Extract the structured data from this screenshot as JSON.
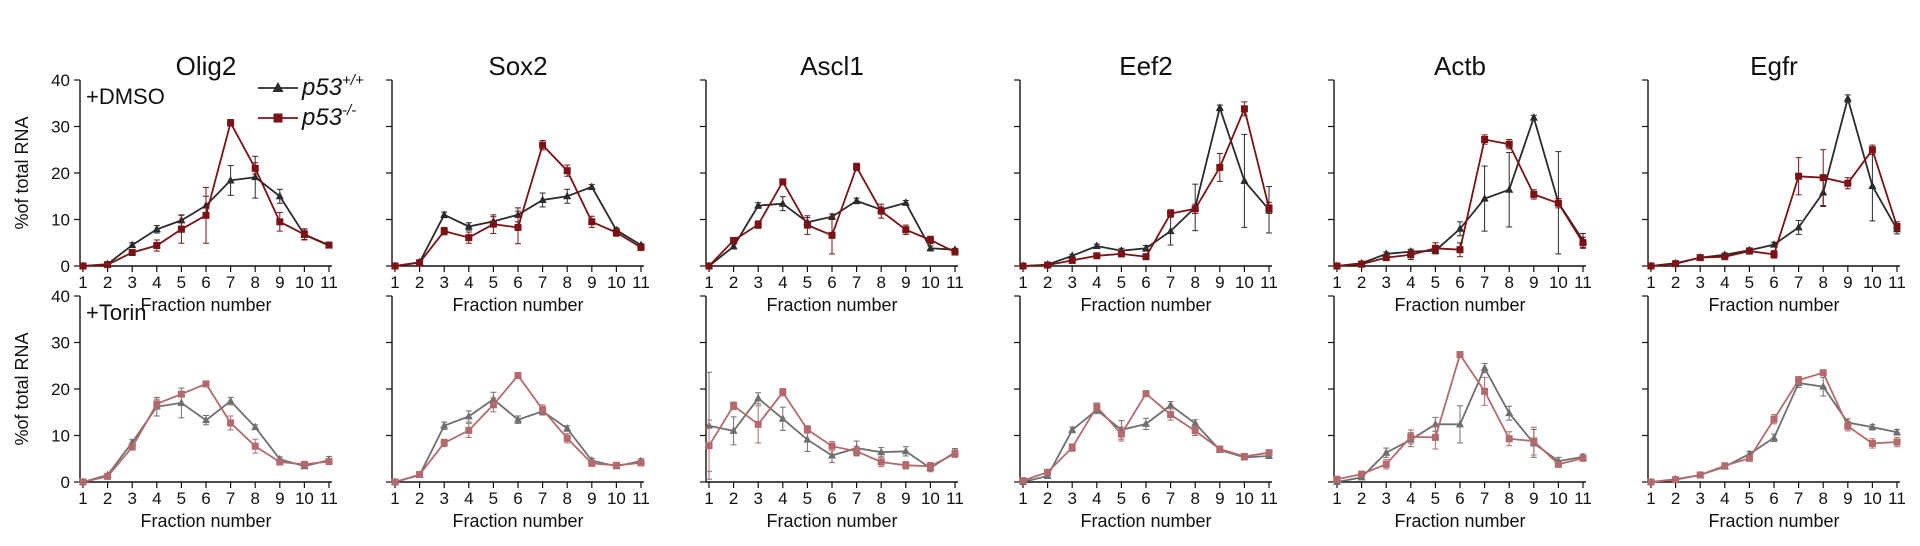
{
  "figure": {
    "legend": [
      {
        "label_main": "p53",
        "label_sup": "+/+",
        "color": "#2b2b2b",
        "marker": "triangle"
      },
      {
        "label_main": "p53",
        "label_sup": "-/-",
        "color": "#7a1216",
        "marker": "square"
      }
    ],
    "rows": [
      {
        "condition": "+DMSO",
        "ylabel": "%of total RNA",
        "faded": false
      },
      {
        "condition": "+Torin",
        "ylabel": "%of total RNA",
        "faded": true
      }
    ],
    "xlabel": "Fraction number",
    "xticks": [
      1,
      2,
      3,
      4,
      5,
      6,
      7,
      8,
      9,
      10,
      11
    ],
    "yticks": [
      0,
      10,
      20,
      30,
      40
    ]
  },
  "chart_data": [
    {
      "type": "line",
      "title": "Olig2",
      "row": "+DMSO",
      "xlabel": "Fraction number",
      "ylabel": "%of total RNA",
      "ylim": [
        0,
        40
      ],
      "x": [
        1,
        2,
        3,
        4,
        5,
        6,
        7,
        8,
        9,
        10,
        11
      ],
      "series": [
        {
          "name": "p53+/+",
          "values": [
            0,
            0.4,
            4.5,
            7.9,
            9.8,
            13,
            18.4,
            19.1,
            15,
            6.7,
            4.4
          ],
          "err": [
            0,
            0.3,
            0.5,
            0.8,
            1.2,
            2,
            3.2,
            4.5,
            1.5,
            1,
            0.5
          ]
        },
        {
          "name": "p53-/-",
          "values": [
            0,
            0.3,
            2.9,
            4.4,
            7.9,
            10.9,
            30.8,
            21,
            9.5,
            6.8,
            4.5
          ],
          "err": [
            0,
            0.2,
            0.6,
            1.2,
            3,
            6,
            0.7,
            1.2,
            2,
            1.2,
            0.5
          ]
        }
      ]
    },
    {
      "type": "line",
      "title": "Sox2",
      "row": "+DMSO",
      "xlabel": "Fraction number",
      "ylabel": "%of total RNA",
      "ylim": [
        0,
        40
      ],
      "x": [
        1,
        2,
        3,
        4,
        5,
        6,
        7,
        8,
        9,
        10,
        11
      ],
      "series": [
        {
          "name": "p53+/+",
          "values": [
            0,
            0.8,
            11,
            8.5,
            9.6,
            11,
            14.2,
            15,
            17,
            7.7,
            4.5
          ],
          "err": [
            0,
            0.4,
            0.6,
            0.8,
            1,
            1.5,
            1.5,
            1.5,
            0.5,
            0.5,
            0.3
          ]
        },
        {
          "name": "p53-/-",
          "values": [
            0,
            0.7,
            7.5,
            6.1,
            9,
            8.3,
            26,
            20.5,
            9.5,
            7.2,
            4
          ],
          "err": [
            0,
            0.3,
            0.8,
            1.2,
            2,
            3.5,
            1,
            1.2,
            1.2,
            0.8,
            0.5
          ]
        }
      ]
    },
    {
      "type": "line",
      "title": "Ascl1",
      "row": "+DMSO",
      "xlabel": "Fraction number",
      "ylabel": "%of total RNA",
      "ylim": [
        0,
        40
      ],
      "x": [
        1,
        2,
        3,
        4,
        5,
        6,
        7,
        8,
        9,
        10,
        11
      ],
      "series": [
        {
          "name": "p53+/+",
          "values": [
            0,
            4.2,
            13,
            13.4,
            9.4,
            10.6,
            14,
            12.1,
            13.6,
            3.8,
            3.5
          ],
          "err": [
            0,
            0.5,
            0.6,
            1.5,
            1,
            0.6,
            0.6,
            0.6,
            0.5,
            0.5,
            0.3
          ]
        },
        {
          "name": "p53-/-",
          "values": [
            0,
            5.5,
            8.9,
            18.1,
            8.8,
            6.6,
            21.3,
            11.8,
            7.8,
            5.6,
            3
          ],
          "err": [
            0,
            0.3,
            0.8,
            0.6,
            2,
            4,
            0.8,
            1.5,
            1,
            0.8,
            0.5
          ]
        }
      ]
    },
    {
      "type": "line",
      "title": "Eef2",
      "row": "+DMSO",
      "xlabel": "Fraction number",
      "ylabel": "%of total RNA",
      "ylim": [
        0,
        40
      ],
      "x": [
        1,
        2,
        3,
        4,
        5,
        6,
        7,
        8,
        9,
        10,
        11
      ],
      "series": [
        {
          "name": "p53+/+",
          "values": [
            0,
            0.3,
            2.2,
            4.3,
            3.3,
            3.8,
            7.5,
            12.6,
            34,
            18.3,
            12.1
          ],
          "err": [
            0,
            0.2,
            0.3,
            0.4,
            0.5,
            0.6,
            3,
            5,
            0.6,
            10,
            5
          ]
        },
        {
          "name": "p53-/-",
          "values": [
            0,
            0.2,
            1.2,
            2.2,
            2.6,
            2,
            11.3,
            12.3,
            21.2,
            33.8,
            12.5
          ],
          "err": [
            0,
            0.1,
            0.3,
            0.4,
            0.5,
            0.5,
            0.8,
            1,
            3,
            1.5,
            1.2
          ]
        }
      ]
    },
    {
      "type": "line",
      "title": "Actb",
      "row": "+DMSO",
      "xlabel": "Fraction number",
      "ylabel": "%of total RNA",
      "ylim": [
        0,
        40
      ],
      "x": [
        1,
        2,
        3,
        4,
        5,
        6,
        7,
        8,
        9,
        10,
        11
      ],
      "series": [
        {
          "name": "p53+/+",
          "values": [
            0,
            0.6,
            2.6,
            3.1,
            3.3,
            8,
            14.5,
            16.4,
            31.9,
            13.6,
            5.5
          ],
          "err": [
            0,
            0.3,
            0.4,
            0.5,
            0.6,
            1.5,
            7,
            8,
            0.5,
            11,
            1.5
          ]
        },
        {
          "name": "p53-/-",
          "values": [
            0,
            0.4,
            1.8,
            2.4,
            3.8,
            3.5,
            27.2,
            26.2,
            15.4,
            13.5,
            5
          ],
          "err": [
            0,
            0.2,
            0.4,
            1,
            1.2,
            1.5,
            1,
            1,
            1,
            1,
            1.2
          ]
        }
      ]
    },
    {
      "type": "line",
      "title": "Egfr",
      "row": "+DMSO",
      "xlabel": "Fraction number",
      "ylabel": "%of total RNA",
      "ylim": [
        0,
        40
      ],
      "x": [
        1,
        2,
        3,
        4,
        5,
        6,
        7,
        8,
        9,
        10,
        11
      ],
      "series": [
        {
          "name": "p53+/+",
          "values": [
            0,
            0.6,
            1.8,
            2.4,
            3.4,
            4.6,
            8.3,
            15.8,
            36,
            17.2,
            7.9
          ],
          "err": [
            0,
            0.3,
            0.3,
            0.4,
            0.5,
            0.5,
            1.5,
            3,
            0.8,
            7.5,
            1
          ]
        },
        {
          "name": "p53-/-",
          "values": [
            0,
            0.5,
            1.8,
            2,
            3.2,
            2.5,
            19.3,
            19,
            17.8,
            25,
            8.5
          ],
          "err": [
            0,
            0.2,
            0.3,
            0.4,
            0.5,
            0.8,
            4,
            6,
            1.2,
            1,
            1
          ]
        }
      ]
    },
    {
      "type": "line",
      "title": "Olig2",
      "row": "+Torin",
      "xlabel": "Fraction number",
      "ylabel": "%of total RNA",
      "ylim": [
        0,
        40
      ],
      "x": [
        1,
        2,
        3,
        4,
        5,
        6,
        7,
        8,
        9,
        10,
        11
      ],
      "series": [
        {
          "name": "p53+/+",
          "values": [
            0,
            1.5,
            8.5,
            16.2,
            17,
            13.3,
            17.4,
            11.8,
            4.9,
            3.4,
            4.7
          ],
          "err": [
            0,
            0.3,
            0.6,
            2,
            3.2,
            1,
            0.8,
            0.5,
            0.5,
            0.5,
            0.8
          ]
        },
        {
          "name": "p53-/-",
          "values": [
            0,
            1.2,
            7.5,
            16.8,
            18.9,
            21.1,
            12.7,
            7.7,
            4.3,
            3.8,
            4.4
          ],
          "err": [
            0,
            0.3,
            0.6,
            1,
            0.5,
            0.6,
            1.5,
            1.5,
            0.5,
            0.5,
            0.5
          ]
        }
      ]
    },
    {
      "type": "line",
      "title": "Sox2",
      "row": "+Torin",
      "xlabel": "Fraction number",
      "ylabel": "%of total RNA",
      "ylim": [
        0,
        40
      ],
      "x": [
        1,
        2,
        3,
        4,
        5,
        6,
        7,
        8,
        9,
        10,
        11
      ],
      "series": [
        {
          "name": "p53+/+",
          "values": [
            0,
            1.5,
            12.1,
            14.1,
            17.8,
            13.4,
            15.2,
            11.5,
            4.6,
            3.4,
            4.5
          ],
          "err": [
            0,
            0.3,
            0.8,
            1.2,
            1.5,
            0.8,
            0.8,
            0.6,
            0.5,
            0.4,
            0.5
          ]
        },
        {
          "name": "p53-/-",
          "values": [
            0,
            1.6,
            8.4,
            11.1,
            16.6,
            22.9,
            15.6,
            9.4,
            4,
            3.6,
            4.1
          ],
          "err": [
            0,
            0.3,
            0.8,
            1.5,
            1.5,
            0.5,
            1,
            1,
            0.5,
            0.4,
            0.5
          ]
        }
      ]
    },
    {
      "type": "line",
      "title": "Ascl1",
      "row": "+Torin",
      "xlabel": "Fraction number",
      "ylabel": "%of total RNA",
      "ylim": [
        0,
        40
      ],
      "x": [
        1,
        2,
        3,
        4,
        5,
        6,
        7,
        8,
        9,
        10,
        11
      ],
      "series": [
        {
          "name": "p53+/+",
          "values": [
            12.1,
            11,
            18,
            13.6,
            9.1,
            5.7,
            7.3,
            6.4,
            6.6,
            3,
            6.4
          ],
          "err": [
            11.5,
            3,
            1.2,
            2.5,
            2.5,
            1.5,
            1.5,
            1,
            1,
            0.8,
            0.8
          ]
        },
        {
          "name": "p53-/-",
          "values": [
            7.8,
            16.4,
            12.4,
            19.3,
            11.3,
            7.7,
            6.6,
            4.3,
            3.6,
            3.4,
            6.1
          ],
          "err": [
            5.5,
            0.8,
            4,
            0.8,
            0.8,
            1,
            1,
            1,
            0.8,
            0.8,
            0.8
          ]
        }
      ]
    },
    {
      "type": "line",
      "title": "Eef2",
      "row": "+Torin",
      "xlabel": "Fraction number",
      "ylabel": "%of total RNA",
      "ylim": [
        0,
        40
      ],
      "x": [
        1,
        2,
        3,
        4,
        5,
        6,
        7,
        8,
        9,
        10,
        11
      ],
      "series": [
        {
          "name": "p53+/+",
          "values": [
            0,
            1.3,
            11.2,
            15.5,
            11.2,
            12.5,
            16.5,
            12.6,
            6.9,
            5.3,
            5.6
          ],
          "err": [
            0,
            0.3,
            0.6,
            0.8,
            2,
            1.2,
            0.8,
            0.8,
            0.5,
            0.5,
            0.5
          ]
        },
        {
          "name": "p53-/-",
          "values": [
            0.3,
            2.1,
            7.4,
            16.2,
            10.3,
            19,
            14.5,
            11,
            7.1,
            5.5,
            6.3
          ],
          "err": [
            0.2,
            0.3,
            0.8,
            0.8,
            1.5,
            0.6,
            1.2,
            1,
            0.5,
            0.5,
            0.6
          ]
        }
      ]
    },
    {
      "type": "line",
      "title": "Actb",
      "row": "+Torin",
      "xlabel": "Fraction number",
      "ylabel": "%of total RNA",
      "ylim": [
        0,
        40
      ],
      "x": [
        1,
        2,
        3,
        4,
        5,
        6,
        7,
        8,
        9,
        10,
        11
      ],
      "series": [
        {
          "name": "p53+/+",
          "values": [
            0,
            1,
            6.3,
            9.1,
            12.4,
            12.4,
            24.5,
            14.8,
            8.3,
            4.5,
            5.4
          ],
          "err": [
            0,
            0.5,
            1,
            1.5,
            1.5,
            4,
            1,
            1.5,
            3,
            0.8,
            0.6
          ]
        },
        {
          "name": "p53-/-",
          "values": [
            0.6,
            1.7,
            3.8,
            9.7,
            9.6,
            27.4,
            19.5,
            9.3,
            8.8,
            3.8,
            5.1
          ],
          "err": [
            0.4,
            0.4,
            1,
            1.5,
            2.5,
            0.6,
            3,
            1.5,
            3,
            0.6,
            0.6
          ]
        }
      ]
    },
    {
      "type": "line",
      "title": "Egfr",
      "row": "+Torin",
      "xlabel": "Fraction number",
      "ylabel": "%of total RNA",
      "ylim": [
        0,
        40
      ],
      "x": [
        1,
        2,
        3,
        4,
        5,
        6,
        7,
        8,
        9,
        10,
        11
      ],
      "series": [
        {
          "name": "p53+/+",
          "values": [
            0,
            0.6,
            1.5,
            3.3,
            6,
            9.5,
            21.3,
            20.5,
            12.8,
            11.8,
            10.7
          ],
          "err": [
            0,
            0.2,
            0.3,
            0.5,
            0.6,
            0.8,
            1,
            2,
            0.8,
            0.6,
            0.6
          ]
        },
        {
          "name": "p53-/-",
          "values": [
            0,
            0.5,
            1.5,
            3.5,
            5.1,
            13.5,
            21.9,
            23.5,
            12,
            8.3,
            8.6
          ],
          "err": [
            0,
            0.2,
            0.3,
            0.5,
            0.6,
            1,
            0.8,
            0.6,
            1,
            1,
            1
          ]
        }
      ]
    }
  ]
}
